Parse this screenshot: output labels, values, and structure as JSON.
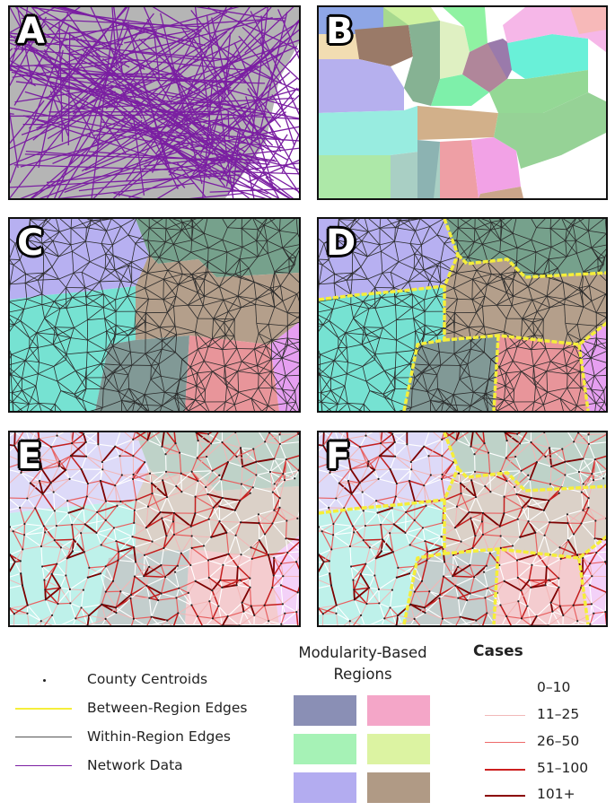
{
  "panels": {
    "a": {
      "label": "A"
    },
    "b": {
      "label": "B"
    },
    "c": {
      "label": "C"
    },
    "d": {
      "label": "D"
    },
    "e": {
      "label": "E"
    },
    "f": {
      "label": "F"
    }
  },
  "legend": {
    "items": [
      {
        "label": "County Centroids",
        "color": "#222222"
      },
      {
        "label": "Between-Region Edges",
        "color": "#f5ee3a"
      },
      {
        "label": "Within-Region Edges",
        "color": "#555555"
      },
      {
        "label": "Network Data",
        "color": "#7b1fa2"
      }
    ],
    "modularity_title_line1": "Modularity-Based",
    "modularity_title_line2": "Regions",
    "swatch_colors": [
      "#8a8fb5",
      "#f4a6c8",
      "#a6f2b6",
      "#dcf3a2",
      "#b3acf0",
      "#b09a85"
    ],
    "cases_title": "Cases",
    "cases": [
      {
        "label": "0–10",
        "color": "#ffffff"
      },
      {
        "label": "11–25",
        "color": "#f7c9c9"
      },
      {
        "label": "26–50",
        "color": "#ee6a6a"
      },
      {
        "label": "51–100",
        "color": "#cc1f1f"
      },
      {
        "label": "101+",
        "color": "#8b0000"
      }
    ]
  },
  "colors": {
    "network": "#7b1fa2",
    "between_edge": "#f5ee3a",
    "within_edge": "#333333",
    "land": "#b5b5b5"
  }
}
